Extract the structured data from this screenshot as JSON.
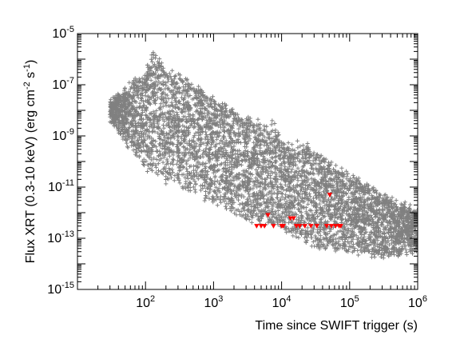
{
  "chart_data": {
    "type": "scatter",
    "xlabel": "Time since SWIFT trigger (s)",
    "ylabel": "Flux XRT (0.3-10 keV) (erg cm^-2 s^-1)",
    "ylabel_parts": {
      "before_exp1": "Flux XRT (0.3-10 keV) (erg cm",
      "exp1": "-2",
      "between": " s",
      "exp2": "-1",
      "after": ")"
    },
    "x_scale": "log",
    "y_scale": "log",
    "xlim": [
      10,
      1000000
    ],
    "ylim": [
      1e-15,
      1e-05
    ],
    "x_ticks": [
      {
        "base": "10",
        "exp": "2",
        "value": 100
      },
      {
        "base": "10",
        "exp": "3",
        "value": 1000
      },
      {
        "base": "10",
        "exp": "4",
        "value": 10000
      },
      {
        "base": "10",
        "exp": "5",
        "value": 100000
      },
      {
        "base": "10",
        "exp": "6",
        "value": 1000000
      }
    ],
    "y_ticks": [
      {
        "base": "10",
        "exp": "-5",
        "value": 1e-05
      },
      {
        "base": "10",
        "exp": "-7",
        "value": 1e-07
      },
      {
        "base": "10",
        "exp": "-9",
        "value": 1e-09
      },
      {
        "base": "10",
        "exp": "-11",
        "value": 1e-11
      },
      {
        "base": "10",
        "exp": "-13",
        "value": 1e-13
      },
      {
        "base": "10",
        "exp": "-15",
        "value": 1e-15
      }
    ],
    "grid": false,
    "colors": {
      "detections": "#808080",
      "upper_limits": "#ff0000"
    },
    "detections_band": {
      "description": "dense cloud of XRT flux measurements",
      "upper_edge": [
        [
          30,
          2e-08
        ],
        [
          60,
          1e-07
        ],
        [
          100,
          3e-07
        ],
        [
          130,
          2e-06
        ],
        [
          200,
          4e-07
        ],
        [
          500,
          1e-07
        ],
        [
          1000,
          3e-08
        ],
        [
          3000,
          5e-09
        ],
        [
          5000,
          3e-09
        ],
        [
          8000,
          3e-09
        ],
        [
          10000,
          5e-10
        ],
        [
          20000,
          5e-10
        ],
        [
          50000,
          1e-10
        ],
        [
          100000,
          3e-11
        ],
        [
          300000,
          5e-12
        ],
        [
          1000000,
          1e-12
        ]
      ],
      "lower_edge": [
        [
          30,
          5e-09
        ],
        [
          60,
          3e-10
        ],
        [
          100,
          5e-11
        ],
        [
          300,
          1e-11
        ],
        [
          1000,
          3e-12
        ],
        [
          3000,
          5e-13
        ],
        [
          10000,
          3e-13
        ],
        [
          30000,
          5e-14
        ],
        [
          100000,
          3e-14
        ],
        [
          300000,
          2e-14
        ],
        [
          1000000,
          3e-14
        ]
      ]
    },
    "upper_limits": [
      {
        "x": 4300,
        "y": 3e-13
      },
      {
        "x": 5000,
        "y": 3e-13
      },
      {
        "x": 5600,
        "y": 3e-13
      },
      {
        "x": 6300,
        "y": 8e-13
      },
      {
        "x": 7600,
        "y": 3e-13
      },
      {
        "x": 10000,
        "y": 3e-13
      },
      {
        "x": 10600,
        "y": 3e-13
      },
      {
        "x": 13500,
        "y": 6e-13
      },
      {
        "x": 15000,
        "y": 6e-13
      },
      {
        "x": 16500,
        "y": 3e-13
      },
      {
        "x": 18500,
        "y": 3e-13
      },
      {
        "x": 22000,
        "y": 3e-13
      },
      {
        "x": 27000,
        "y": 3e-13
      },
      {
        "x": 33000,
        "y": 3e-13
      },
      {
        "x": 46000,
        "y": 3e-13
      },
      {
        "x": 51000,
        "y": 5e-12
      },
      {
        "x": 54000,
        "y": 3e-13
      },
      {
        "x": 62000,
        "y": 3e-13
      },
      {
        "x": 70000,
        "y": 3e-13
      },
      {
        "x": 74000,
        "y": 3e-13
      }
    ]
  }
}
